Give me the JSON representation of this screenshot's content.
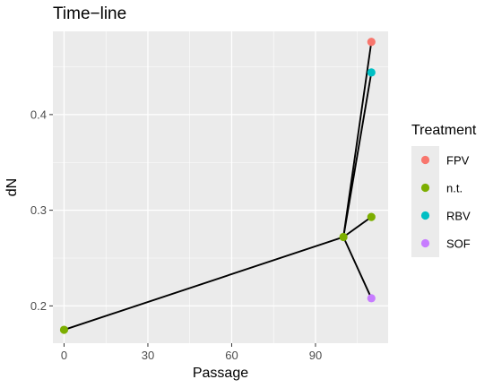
{
  "chart_data": {
    "type": "scatter",
    "title": "Time−line",
    "xlabel": "Passage",
    "ylabel": "dN",
    "xlim": [
      -4,
      116
    ],
    "ylim": [
      0.161,
      0.487
    ],
    "x_ticks": [
      0,
      30,
      60,
      90
    ],
    "y_ticks": [
      0.2,
      0.3,
      0.4
    ],
    "grid": true,
    "legend": {
      "title": "Treatment",
      "position": "right",
      "entries": [
        {
          "label": "FPV",
          "color": "#F8766D"
        },
        {
          "label": "n.t.",
          "color": "#7CAE00"
        },
        {
          "label": "RBV",
          "color": "#00BFC4"
        },
        {
          "label": "SOF",
          "color": "#C77CFF"
        }
      ]
    },
    "points": [
      {
        "x": 0,
        "y": 0.175,
        "treatment": "n.t."
      },
      {
        "x": 100,
        "y": 0.272,
        "treatment": "n.t."
      },
      {
        "x": 110,
        "y": 0.476,
        "treatment": "FPV"
      },
      {
        "x": 110,
        "y": 0.444,
        "treatment": "RBV"
      },
      {
        "x": 110,
        "y": 0.293,
        "treatment": "n.t."
      },
      {
        "x": 110,
        "y": 0.208,
        "treatment": "SOF"
      }
    ],
    "segments": [
      {
        "from": [
          0,
          0.175
        ],
        "to": [
          100,
          0.272
        ]
      },
      {
        "from": [
          100,
          0.272
        ],
        "to": [
          110,
          0.476
        ]
      },
      {
        "from": [
          100,
          0.272
        ],
        "to": [
          110,
          0.444
        ]
      },
      {
        "from": [
          100,
          0.272
        ],
        "to": [
          110,
          0.293
        ]
      },
      {
        "from": [
          100,
          0.272
        ],
        "to": [
          110,
          0.208
        ]
      }
    ]
  }
}
